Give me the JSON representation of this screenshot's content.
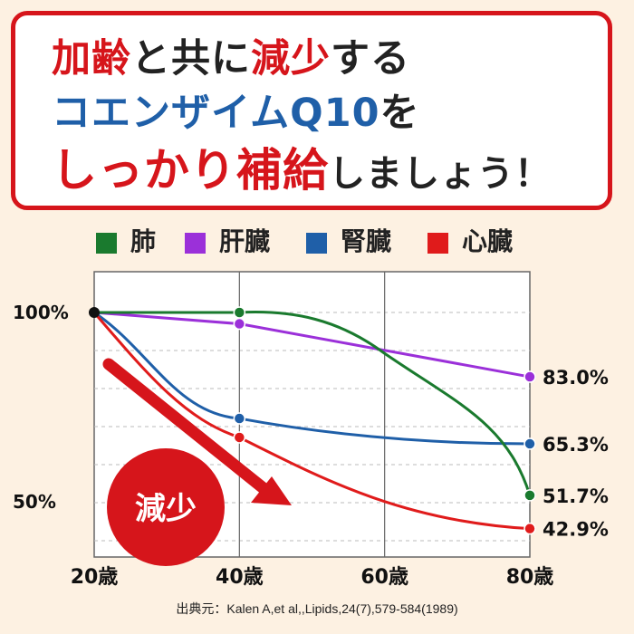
{
  "headline": {
    "l1a": "加齢",
    "l1b": "と共に",
    "l1c": "減少",
    "l1d": "する",
    "l2": "コエンザイムQ10",
    "l2b": "を",
    "l3a": "しっかり",
    "l3b": "補給",
    "l3c": "しましょう！"
  },
  "badge": "減少",
  "source": "出典元：Kalen A,et al,,Lipids,24(7),579-584(1989)",
  "colors": {
    "lung": "#1a7a2e",
    "liver": "#9b30d9",
    "kidney": "#1f5fa8",
    "heart": "#e01b1b",
    "accent": "#d6151b"
  },
  "chart_data": {
    "type": "line",
    "x": [
      20,
      40,
      80
    ],
    "x_tick_labels": [
      "20歳",
      "40歳",
      "60歳",
      "80歳"
    ],
    "x_ticks": [
      20,
      40,
      60,
      80
    ],
    "xlim": [
      20,
      80
    ],
    "y_tick_labels": [
      "100%",
      "50%"
    ],
    "y_ticks": [
      100,
      50
    ],
    "ylim": [
      40,
      105
    ],
    "grid": true,
    "legend_position": "top",
    "series": [
      {
        "name": "肺",
        "key": "lung",
        "values": [
          100,
          100,
          51.7
        ],
        "end_label": "51.7%"
      },
      {
        "name": "肝臓",
        "key": "liver",
        "values": [
          100,
          97,
          83.0
        ],
        "end_label": "83.0%"
      },
      {
        "name": "腎臓",
        "key": "kidney",
        "values": [
          100,
          72,
          65.3
        ],
        "end_label": "65.3%"
      },
      {
        "name": "心臓",
        "key": "heart",
        "values": [
          100,
          67,
          42.9
        ],
        "end_label": "42.9%"
      }
    ]
  }
}
